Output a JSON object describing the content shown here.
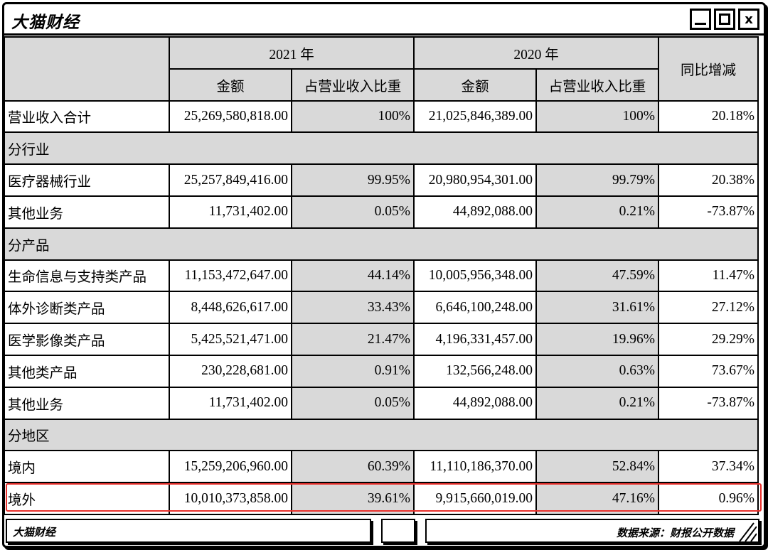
{
  "window": {
    "title": "大猫财经",
    "controls": {
      "minimize": "_",
      "maximize": "□",
      "close": "x"
    }
  },
  "table": {
    "header": {
      "year_2021": "2021 年",
      "year_2020": "2020 年",
      "amount_label": "金额",
      "ratio_label": "占营业收入比重",
      "yoy_label": "同比增减"
    },
    "rows": [
      {
        "type": "data",
        "label": "营业收入合计",
        "amt2021": "25,269,580,818.00",
        "pct2021": "100%",
        "amt2020": "21,025,846,389.00",
        "pct2020": "100%",
        "yoy": "20.18%"
      },
      {
        "type": "section",
        "label": "分行业"
      },
      {
        "type": "data",
        "label": "医疗器械行业",
        "amt2021": "25,257,849,416.00",
        "pct2021": "99.95%",
        "amt2020": "20,980,954,301.00",
        "pct2020": "99.79%",
        "yoy": "20.38%"
      },
      {
        "type": "data",
        "label": "其他业务",
        "amt2021": "11,731,402.00",
        "pct2021": "0.05%",
        "amt2020": "44,892,088.00",
        "pct2020": "0.21%",
        "yoy": "-73.87%"
      },
      {
        "type": "section",
        "label": "分产品"
      },
      {
        "type": "data",
        "label": "生命信息与支持类产品",
        "amt2021": "11,153,472,647.00",
        "pct2021": "44.14%",
        "amt2020": "10,005,956,348.00",
        "pct2020": "47.59%",
        "yoy": "11.47%"
      },
      {
        "type": "data",
        "label": "体外诊断类产品",
        "amt2021": "8,448,626,617.00",
        "pct2021": "33.43%",
        "amt2020": "6,646,100,248.00",
        "pct2020": "31.61%",
        "yoy": "27.12%"
      },
      {
        "type": "data",
        "label": "医学影像类产品",
        "amt2021": "5,425,521,471.00",
        "pct2021": "21.47%",
        "amt2020": "4,196,331,457.00",
        "pct2020": "19.96%",
        "yoy": "29.29%"
      },
      {
        "type": "data",
        "label": "其他类产品",
        "amt2021": "230,228,681.00",
        "pct2021": "0.91%",
        "amt2020": "132,566,248.00",
        "pct2020": "0.63%",
        "yoy": "73.67%"
      },
      {
        "type": "data",
        "label": "其他业务",
        "amt2021": "11,731,402.00",
        "pct2021": "0.05%",
        "amt2020": "44,892,088.00",
        "pct2020": "0.21%",
        "yoy": "-73.87%"
      },
      {
        "type": "section",
        "label": "分地区"
      },
      {
        "type": "data",
        "label": "境内",
        "amt2021": "15,259,206,960.00",
        "pct2021": "60.39%",
        "amt2020": "11,110,186,370.00",
        "pct2020": "52.84%",
        "yoy": "37.34%"
      },
      {
        "type": "data",
        "label": "境外",
        "amt2021": "10,010,373,858.00",
        "pct2021": "39.61%",
        "amt2020": "9,915,660,019.00",
        "pct2020": "47.16%",
        "yoy": "0.96%"
      }
    ]
  },
  "highlight_color": "#e8302c",
  "footer": {
    "brand": "大猫财经",
    "source": "数据来源：财报公开数据"
  }
}
